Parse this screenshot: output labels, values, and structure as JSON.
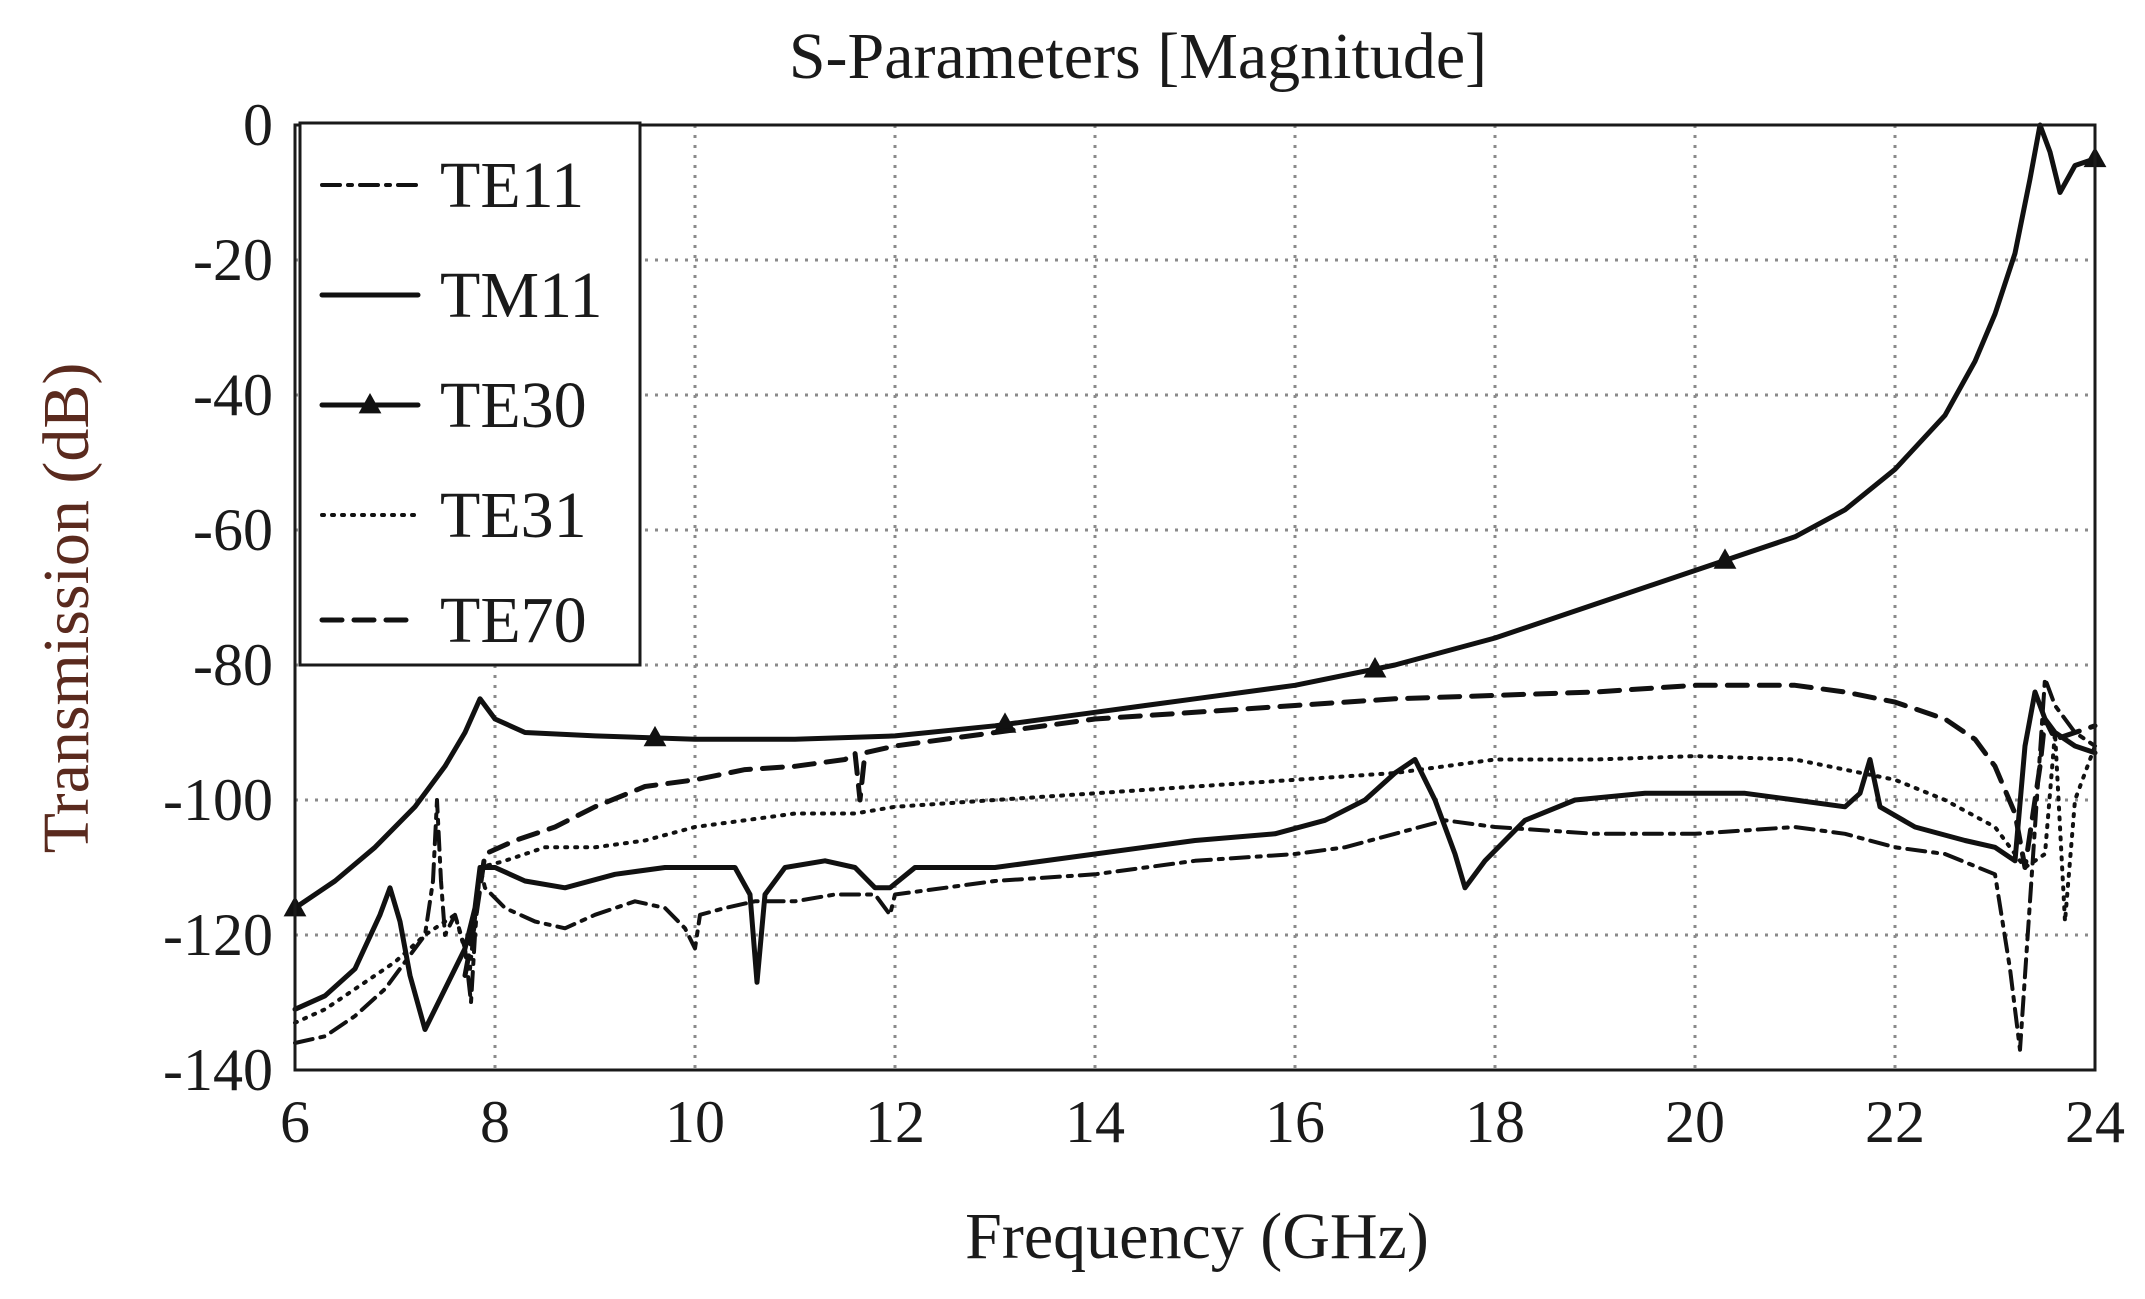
{
  "chart_data": {
    "type": "line",
    "title": "S-Parameters [Magnitude]",
    "xlabel": "Frequency (GHz)",
    "ylabel": "Transmission (dB)",
    "xlim": [
      6,
      24
    ],
    "ylim": [
      -140,
      0
    ],
    "xticks": [
      "6",
      "8",
      "10",
      "12",
      "14",
      "16",
      "18",
      "20",
      "22",
      "24"
    ],
    "yticks": [
      "0",
      "-20",
      "-40",
      "-60",
      "-80",
      "-100",
      "-120",
      "-140"
    ],
    "xtick_values": [
      6,
      8,
      10,
      12,
      14,
      16,
      18,
      20,
      22,
      24
    ],
    "ytick_values": [
      0,
      -20,
      -40,
      -60,
      -80,
      -100,
      -120,
      -140
    ],
    "grid": true,
    "legend_position": "top-left",
    "series": [
      {
        "name": "TE11",
        "style": "dash-dot",
        "points": [
          [
            6.0,
            -136
          ],
          [
            6.3,
            -135
          ],
          [
            6.6,
            -132
          ],
          [
            6.9,
            -128
          ],
          [
            7.1,
            -124
          ],
          [
            7.3,
            -120
          ],
          [
            7.38,
            -112
          ],
          [
            7.42,
            -100
          ],
          [
            7.46,
            -112
          ],
          [
            7.5,
            -120
          ],
          [
            7.6,
            -117
          ],
          [
            7.7,
            -122
          ],
          [
            7.76,
            -130
          ],
          [
            7.8,
            -120
          ],
          [
            7.85,
            -110
          ],
          [
            7.9,
            -113
          ],
          [
            8.1,
            -116
          ],
          [
            8.4,
            -118
          ],
          [
            8.7,
            -119
          ],
          [
            9.0,
            -117
          ],
          [
            9.4,
            -115
          ],
          [
            9.7,
            -116
          ],
          [
            9.9,
            -119
          ],
          [
            10.0,
            -122
          ],
          [
            10.05,
            -117
          ],
          [
            10.3,
            -116
          ],
          [
            10.6,
            -115
          ],
          [
            11.0,
            -115
          ],
          [
            11.4,
            -114
          ],
          [
            11.8,
            -114
          ],
          [
            11.95,
            -117
          ],
          [
            12.0,
            -114
          ],
          [
            12.5,
            -113
          ],
          [
            13.0,
            -112
          ],
          [
            14.0,
            -111
          ],
          [
            15.0,
            -109
          ],
          [
            16.0,
            -108
          ],
          [
            16.5,
            -107
          ],
          [
            17.0,
            -105
          ],
          [
            17.5,
            -103
          ],
          [
            18.0,
            -104
          ],
          [
            19.0,
            -105
          ],
          [
            20.0,
            -105
          ],
          [
            21.0,
            -104
          ],
          [
            21.5,
            -105
          ],
          [
            22.0,
            -107
          ],
          [
            22.5,
            -108
          ],
          [
            23.0,
            -111
          ],
          [
            23.15,
            -125
          ],
          [
            23.25,
            -137
          ],
          [
            23.35,
            -115
          ],
          [
            23.5,
            -82
          ],
          [
            23.6,
            -86
          ],
          [
            23.8,
            -90
          ],
          [
            24.0,
            -92
          ]
        ]
      },
      {
        "name": "TM11",
        "style": "solid",
        "points": [
          [
            6.0,
            -131
          ],
          [
            6.3,
            -129
          ],
          [
            6.6,
            -125
          ],
          [
            6.85,
            -117
          ],
          [
            6.95,
            -113
          ],
          [
            7.05,
            -118
          ],
          [
            7.15,
            -126
          ],
          [
            7.3,
            -134
          ],
          [
            7.5,
            -128
          ],
          [
            7.7,
            -122
          ],
          [
            7.8,
            -116
          ],
          [
            7.85,
            -110
          ],
          [
            8.0,
            -110
          ],
          [
            8.3,
            -112
          ],
          [
            8.7,
            -113
          ],
          [
            9.2,
            -111
          ],
          [
            9.7,
            -110
          ],
          [
            10.1,
            -110
          ],
          [
            10.4,
            -110
          ],
          [
            10.55,
            -114
          ],
          [
            10.62,
            -127
          ],
          [
            10.7,
            -114
          ],
          [
            10.9,
            -110
          ],
          [
            11.3,
            -109
          ],
          [
            11.6,
            -110
          ],
          [
            11.8,
            -113
          ],
          [
            11.95,
            -113
          ],
          [
            12.2,
            -110
          ],
          [
            13.0,
            -110
          ],
          [
            14.0,
            -108
          ],
          [
            15.0,
            -106
          ],
          [
            15.8,
            -105
          ],
          [
            16.3,
            -103
          ],
          [
            16.7,
            -100
          ],
          [
            17.0,
            -96
          ],
          [
            17.2,
            -94
          ],
          [
            17.4,
            -100
          ],
          [
            17.6,
            -108
          ],
          [
            17.7,
            -113
          ],
          [
            17.9,
            -109
          ],
          [
            18.3,
            -103
          ],
          [
            18.8,
            -100
          ],
          [
            19.5,
            -99
          ],
          [
            20.5,
            -99
          ],
          [
            21.0,
            -100
          ],
          [
            21.5,
            -101
          ],
          [
            21.65,
            -99
          ],
          [
            21.75,
            -94
          ],
          [
            21.85,
            -101
          ],
          [
            22.2,
            -104
          ],
          [
            22.7,
            -106
          ],
          [
            23.0,
            -107
          ],
          [
            23.2,
            -109
          ],
          [
            23.3,
            -92
          ],
          [
            23.4,
            -84
          ],
          [
            23.5,
            -88
          ],
          [
            23.6,
            -90
          ],
          [
            23.8,
            -92
          ],
          [
            24.0,
            -93
          ]
        ]
      },
      {
        "name": "TE30",
        "style": "solid-triangles",
        "markers_x": [
          6.0,
          9.6,
          13.1,
          16.8,
          20.3,
          24.0
        ],
        "points": [
          [
            6.0,
            -116
          ],
          [
            6.4,
            -112
          ],
          [
            6.8,
            -107
          ],
          [
            7.2,
            -101
          ],
          [
            7.5,
            -95
          ],
          [
            7.7,
            -90
          ],
          [
            7.85,
            -85
          ],
          [
            8.0,
            -88
          ],
          [
            8.3,
            -90
          ],
          [
            9.0,
            -90.5
          ],
          [
            10.0,
            -91
          ],
          [
            11.0,
            -91
          ],
          [
            12.0,
            -90.5
          ],
          [
            13.0,
            -89
          ],
          [
            14.0,
            -87
          ],
          [
            15.0,
            -85
          ],
          [
            16.0,
            -83
          ],
          [
            17.0,
            -80
          ],
          [
            18.0,
            -76
          ],
          [
            19.0,
            -71
          ],
          [
            20.0,
            -66
          ],
          [
            21.0,
            -61
          ],
          [
            21.5,
            -57
          ],
          [
            22.0,
            -51
          ],
          [
            22.5,
            -43
          ],
          [
            22.8,
            -35
          ],
          [
            23.0,
            -28
          ],
          [
            23.2,
            -19
          ],
          [
            23.35,
            -8
          ],
          [
            23.45,
            0
          ],
          [
            23.55,
            -4
          ],
          [
            23.65,
            -10
          ],
          [
            23.8,
            -6
          ],
          [
            24.0,
            -5
          ]
        ]
      },
      {
        "name": "TE31",
        "style": "dotted",
        "points": [
          [
            6.0,
            -133
          ],
          [
            6.3,
            -131
          ],
          [
            6.6,
            -128
          ],
          [
            7.0,
            -124
          ],
          [
            7.3,
            -120
          ],
          [
            7.6,
            -117
          ],
          [
            7.75,
            -125
          ],
          [
            7.85,
            -110
          ],
          [
            8.1,
            -109
          ],
          [
            8.5,
            -107
          ],
          [
            9.0,
            -107
          ],
          [
            9.5,
            -106
          ],
          [
            10.0,
            -104
          ],
          [
            10.5,
            -103
          ],
          [
            11.0,
            -102
          ],
          [
            11.6,
            -102
          ],
          [
            12.0,
            -101
          ],
          [
            13.0,
            -100
          ],
          [
            14.0,
            -99
          ],
          [
            15.0,
            -98
          ],
          [
            16.0,
            -97
          ],
          [
            17.0,
            -96
          ],
          [
            18.0,
            -94
          ],
          [
            19.0,
            -94
          ],
          [
            20.0,
            -93.5
          ],
          [
            21.0,
            -94
          ],
          [
            22.0,
            -97
          ],
          [
            22.5,
            -100
          ],
          [
            23.0,
            -104
          ],
          [
            23.3,
            -110
          ],
          [
            23.5,
            -108
          ],
          [
            23.6,
            -90
          ],
          [
            23.7,
            -118
          ],
          [
            23.8,
            -100
          ],
          [
            24.0,
            -92
          ]
        ]
      },
      {
        "name": "TE70",
        "style": "dashed",
        "points": [
          [
            7.7,
            -126
          ],
          [
            7.8,
            -118
          ],
          [
            7.9,
            -108
          ],
          [
            8.2,
            -106
          ],
          [
            8.6,
            -104
          ],
          [
            9.0,
            -101
          ],
          [
            9.5,
            -98
          ],
          [
            10.0,
            -97
          ],
          [
            10.5,
            -95.5
          ],
          [
            11.0,
            -95
          ],
          [
            11.5,
            -94
          ],
          [
            11.6,
            -93
          ],
          [
            11.65,
            -100
          ],
          [
            11.7,
            -93
          ],
          [
            12.0,
            -92
          ],
          [
            13.0,
            -90
          ],
          [
            14.0,
            -88
          ],
          [
            15.0,
            -87
          ],
          [
            16.0,
            -86
          ],
          [
            17.0,
            -85
          ],
          [
            18.0,
            -84.5
          ],
          [
            19.0,
            -84
          ],
          [
            20.0,
            -83
          ],
          [
            21.0,
            -83
          ],
          [
            21.5,
            -84
          ],
          [
            22.0,
            -85.5
          ],
          [
            22.5,
            -88
          ],
          [
            22.8,
            -91
          ],
          [
            23.0,
            -95
          ],
          [
            23.2,
            -102
          ],
          [
            23.3,
            -110
          ],
          [
            23.45,
            -95
          ],
          [
            23.5,
            -88
          ],
          [
            23.6,
            -91
          ],
          [
            23.8,
            -90
          ],
          [
            24.0,
            -89
          ]
        ]
      }
    ]
  }
}
